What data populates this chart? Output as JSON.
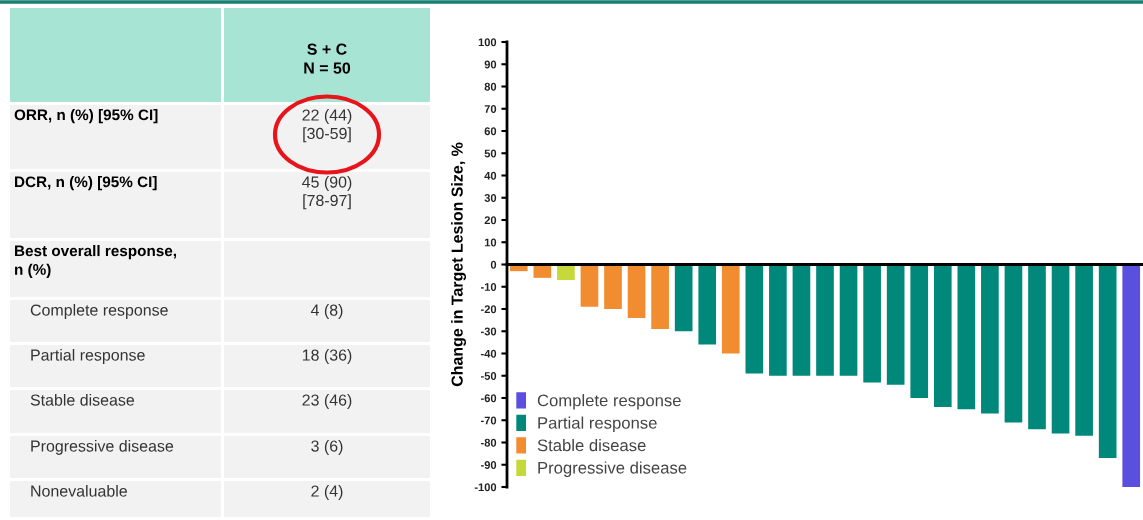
{
  "chart_data": [
    {
      "type": "other",
      "title": "S + C",
      "subtitle": "N = 50",
      "categories": [
        "ORR, n (%) [95% CI]",
        "DCR, n (%) [95% CI]",
        "Best overall response,\nn (%)",
        "Complete response",
        "Partial response",
        "Stable disease",
        "Progressive disease",
        "Nonevaluable"
      ],
      "value_labels": [
        "22 (44)\n[30-59]",
        "45 (90)\n[78-97]",
        null,
        "4 (8)",
        "18 (36)",
        "23 (46)",
        "3 (6)",
        "2 (4)"
      ]
    },
    {
      "type": "bar",
      "ylabel": "Change in Target Lesion Size, %",
      "categories": [
        null,
        null,
        null,
        null,
        null,
        null,
        null,
        null,
        null,
        null,
        null,
        null,
        null,
        null,
        null,
        null,
        null,
        null,
        null,
        null,
        null,
        null,
        null,
        null,
        null,
        null,
        null
      ],
      "series": [
        {
          "name": "Complete response",
          "color": "#5b4fe0",
          "values": [
            null,
            null,
            null,
            null,
            null,
            null,
            null,
            null,
            null,
            null,
            null,
            null,
            null,
            null,
            null,
            null,
            null,
            null,
            null,
            null,
            null,
            null,
            null,
            null,
            null,
            null,
            -100
          ]
        },
        {
          "name": "Partial response",
          "color": "#00897b",
          "values": [
            null,
            null,
            null,
            null,
            null,
            null,
            null,
            -30,
            -36,
            null,
            -49,
            -50,
            -50,
            -50,
            -50,
            -53,
            -54,
            -60,
            -64,
            -65,
            -67,
            -71,
            -74,
            -76,
            -77,
            -87,
            null
          ]
        },
        {
          "name": "Stable disease",
          "color": "#f28c30",
          "values": [
            -3,
            -6,
            null,
            -19,
            -20,
            -24,
            -29,
            null,
            null,
            -40,
            null,
            null,
            null,
            null,
            null,
            null,
            null,
            null,
            null,
            null,
            null,
            null,
            null,
            null,
            null,
            null,
            null
          ]
        },
        {
          "name": "Progressive disease",
          "color": "#c5d93a",
          "values": [
            null,
            null,
            -7,
            null,
            null,
            null,
            null,
            null,
            null,
            null,
            null,
            null,
            null,
            null,
            null,
            null,
            null,
            null,
            null,
            null,
            null,
            null,
            null,
            null,
            null,
            null,
            null
          ]
        }
      ],
      "ylim": [
        -100,
        100
      ],
      "yticks": [
        -100,
        -90,
        -80,
        -70,
        -60,
        -50,
        -40,
        -30,
        -20,
        -10,
        0,
        10,
        20,
        30,
        40,
        50,
        60,
        70,
        80,
        90,
        100
      ],
      "legend": "bottom left"
    }
  ]
}
